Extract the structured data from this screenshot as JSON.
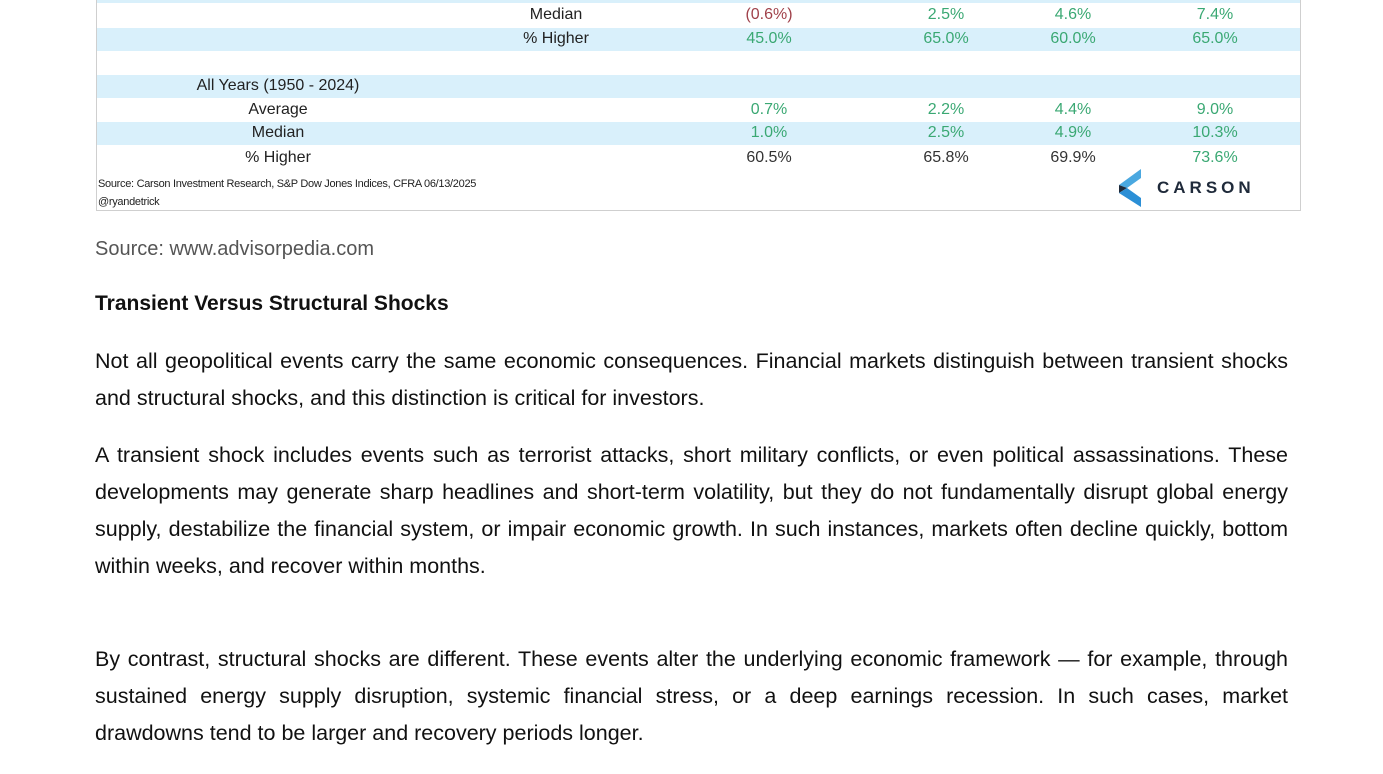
{
  "table": {
    "rows": [
      {
        "label": "Median",
        "values": [
          "(0.6%)",
          "2.5%",
          "4.6%",
          "7.4%"
        ]
      },
      {
        "label": "% Higher",
        "values": [
          "45.0%",
          "65.0%",
          "60.0%",
          "65.0%"
        ]
      },
      {
        "group": "All Years (1950 - 2024)"
      },
      {
        "label": "Average",
        "values": [
          "0.7%",
          "2.2%",
          "4.4%",
          "9.0%"
        ]
      },
      {
        "label": "Median",
        "values": [
          "1.0%",
          "2.5%",
          "4.9%",
          "10.3%"
        ]
      },
      {
        "label": "% Higher",
        "values": [
          "60.5%",
          "65.8%",
          "69.9%",
          "73.6%"
        ]
      }
    ],
    "source": "Source: Carson Investment Research, S&P Dow Jones Indices, CFRA 06/13/2025",
    "handle": "@ryandetrick",
    "logo": "CARSON",
    "colors": {
      "positive": "#3aa873",
      "negative": "#a0414a",
      "band": "#d9f0fb"
    }
  },
  "image_source": "Source: www.advisorpedia.com",
  "heading": "Transient Versus Structural Shocks",
  "paragraphs": [
    "Not all geopolitical events carry the same economic consequences. Financial markets distinguish between transient shocks and structural shocks, and this distinction is critical for investors.",
    "A transient shock includes events such as terrorist attacks, short military conflicts, or even political assassinations. These developments may generate sharp headlines and short-term volatility, but they do not fundamentally disrupt global energy supply, destabilize the financial system, or impair economic growth. In such instances, markets often decline quickly, bottom within weeks, and recover within months.",
    "By contrast, structural shocks are different. These events alter the underlying economic framework — for example, through sustained energy supply disruption, systemic financial stress, or a deep earnings recession. In such cases, market drawdowns tend to be larger and recovery periods longer."
  ]
}
